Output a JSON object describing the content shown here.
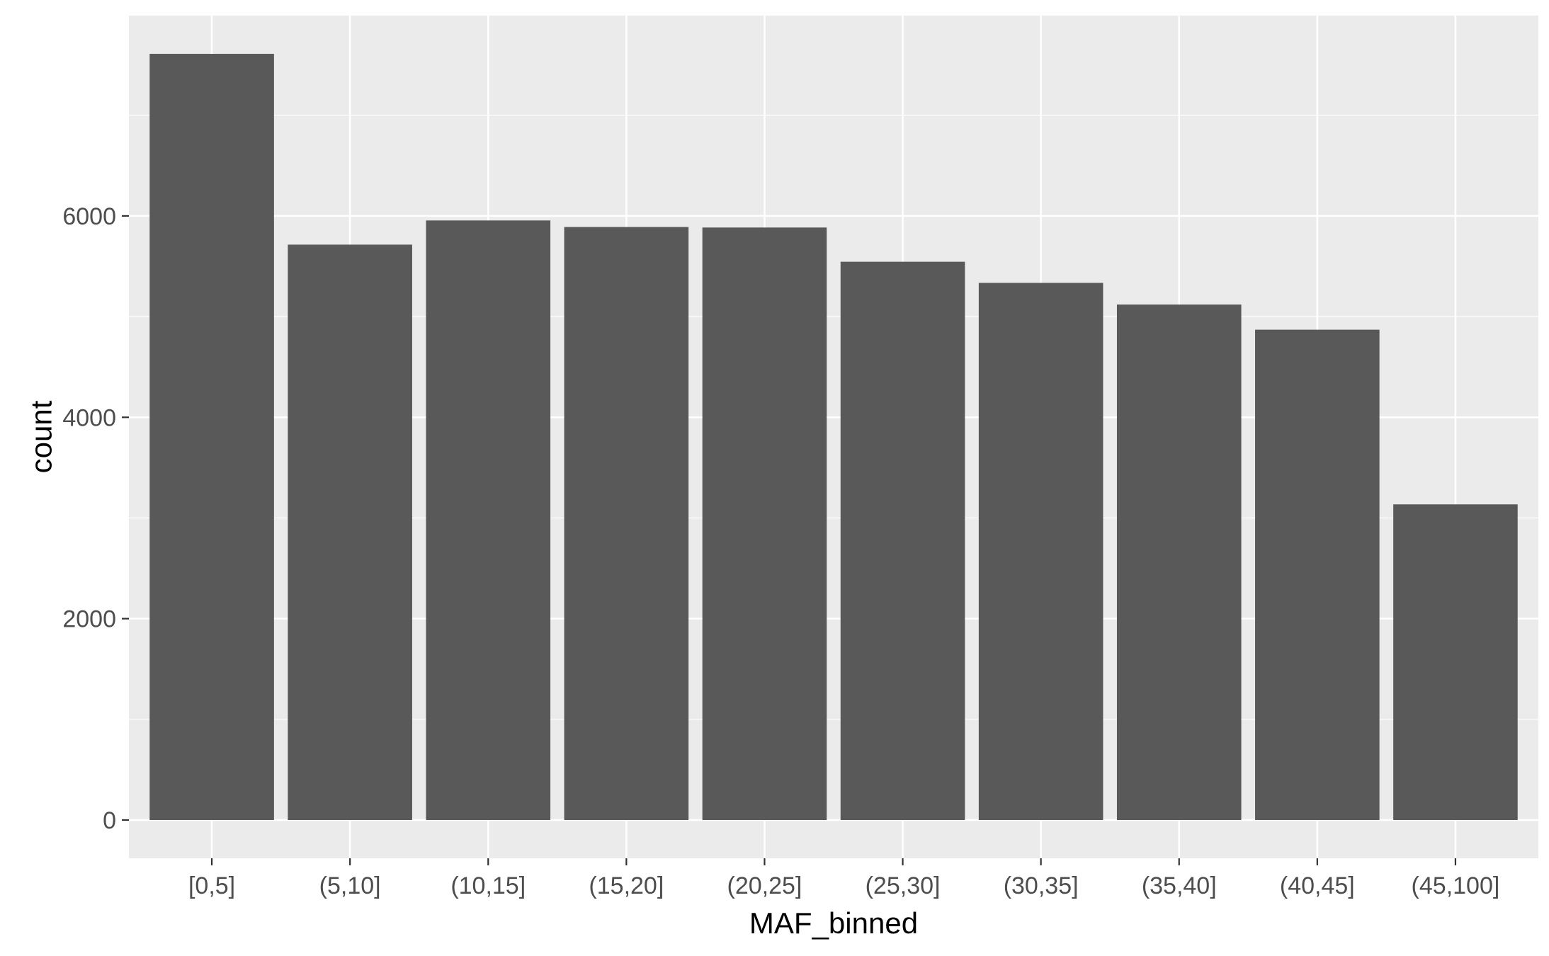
{
  "chart_data": {
    "type": "bar",
    "categories": [
      "[0,5]",
      "(5,10]",
      "(10,15]",
      "(15,20]",
      "(20,25]",
      "(25,30]",
      "(30,35]",
      "(35,40]",
      "(40,45]",
      "(45,100]"
    ],
    "values": [
      7610,
      5715,
      5955,
      5890,
      5885,
      5545,
      5335,
      5120,
      4870,
      3135
    ],
    "xlabel": "MAF_binned",
    "ylabel": "count",
    "ylim": [
      -380,
      7990
    ],
    "yticks": [
      0,
      2000,
      4000,
      6000
    ],
    "grid": true,
    "colors": {
      "bar": "#595959",
      "panel": "#ebebeb",
      "gridline": "#ffffff",
      "tick_text": "#4d4d4d",
      "axis_title": "#000000"
    }
  }
}
